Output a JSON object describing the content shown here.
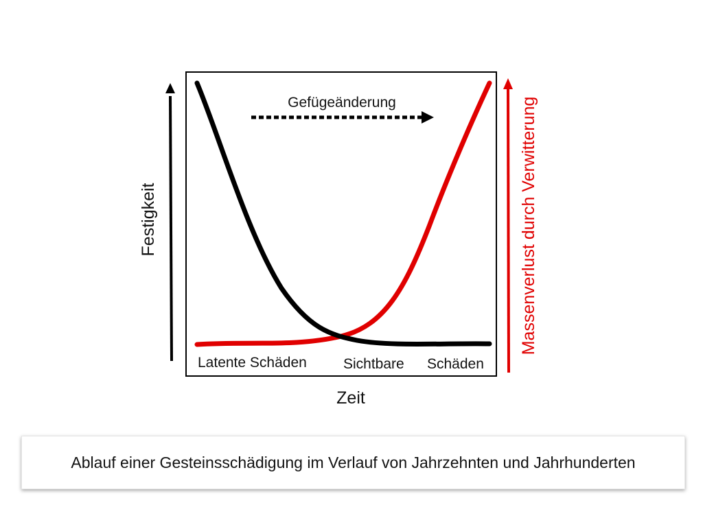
{
  "diagram": {
    "top_arrow_label": "Gefügeänderung",
    "left_axis_label": "Festigkeit",
    "right_axis_label": "Massenverlust durch Verwitterung",
    "bottom_axis_label": "Zeit",
    "phase_latent": "Latente Schäden",
    "phase_visible_1": "Sichtbare",
    "phase_visible_2": "Schäden",
    "colors": {
      "strength_curve": "#000000",
      "mass_loss_curve": "#e00000",
      "left_axis_arrow": "#000000",
      "right_axis_arrow": "#e00000",
      "right_axis_label": "#e00000"
    }
  },
  "caption": {
    "text": "Ablauf einer Gesteinsschädigung im Verlauf von Jahrzehnten und Jahrhunderten"
  }
}
